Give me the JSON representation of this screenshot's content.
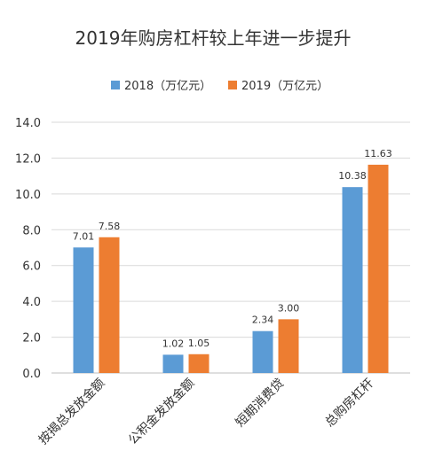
{
  "chart_data": {
    "type": "bar",
    "title": "2019年购房杠杆较上年进一步提升",
    "categories": [
      "按揭总发放金额",
      "公积金发放金额",
      "短期消费贷",
      "总购房杠杆"
    ],
    "series": [
      {
        "name": "2018（万亿元）",
        "color": "#5b9bd5",
        "values": [
          7.01,
          1.02,
          2.34,
          10.38
        ],
        "labels": [
          "7.01",
          "1.02",
          "2.34",
          "10.38"
        ]
      },
      {
        "name": "2019（万亿元）",
        "color": "#ed7d31",
        "values": [
          7.58,
          1.05,
          3.0,
          11.63
        ],
        "labels": [
          "7.58",
          "1.05",
          "3.00",
          "11.63"
        ]
      }
    ],
    "ylim": [
      0,
      14
    ],
    "yticks": [
      "0.0",
      "2.0",
      "4.0",
      "6.0",
      "8.0",
      "10.0",
      "12.0",
      "14.0"
    ],
    "grid": true,
    "legend": "top-center"
  }
}
